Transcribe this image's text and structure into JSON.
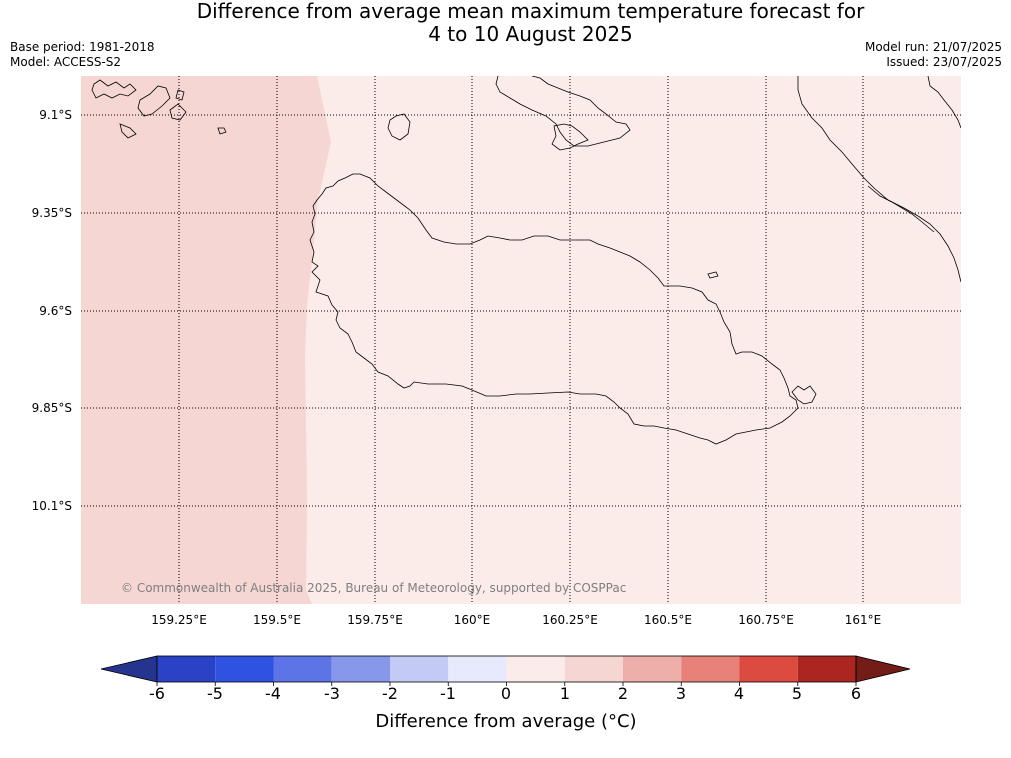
{
  "title": {
    "line1": "Difference from average mean maximum temperature forecast for",
    "line2": "4 to 10 August 2025"
  },
  "meta_left": {
    "base_period": "Base period: 1981-2018",
    "model": "Model: ACCESS-S2"
  },
  "meta_right": {
    "model_run": "Model run: 21/07/2025",
    "issued": "Issued: 23/07/2025"
  },
  "map": {
    "lat_labels": [
      "9.1°S",
      "9.35°S",
      "9.6°S",
      "9.85°S",
      "10.1°S"
    ],
    "lon_labels": [
      "159.25°E",
      "159.5°E",
      "159.75°E",
      "160°E",
      "160.25°E",
      "160.5°E",
      "160.75°E",
      "161°E"
    ],
    "copyright": "© Commonwealth of Australia 2025, Bureau of Meteorology, supported by COSPPac",
    "colors": {
      "anomaly_1_to_2": "#f5d6d3",
      "anomaly_0_to_1": "#fbecea",
      "coastline": "#000000"
    }
  },
  "colorbar": {
    "labels": [
      "-6",
      "-5",
      "-4",
      "-3",
      "-2",
      "-1",
      "0",
      "1",
      "2",
      "3",
      "4",
      "5",
      "6"
    ],
    "colors": [
      "#24348f",
      "#2a43c6",
      "#2f53e0",
      "#5d74e6",
      "#8798eb",
      "#c3caf6",
      "#e6eafc",
      "#fbecea",
      "#f5d6d3",
      "#eeafaa",
      "#e88179",
      "#dc4b3f",
      "#ab2620",
      "#741c17"
    ],
    "title": "Difference from average (°C)"
  }
}
